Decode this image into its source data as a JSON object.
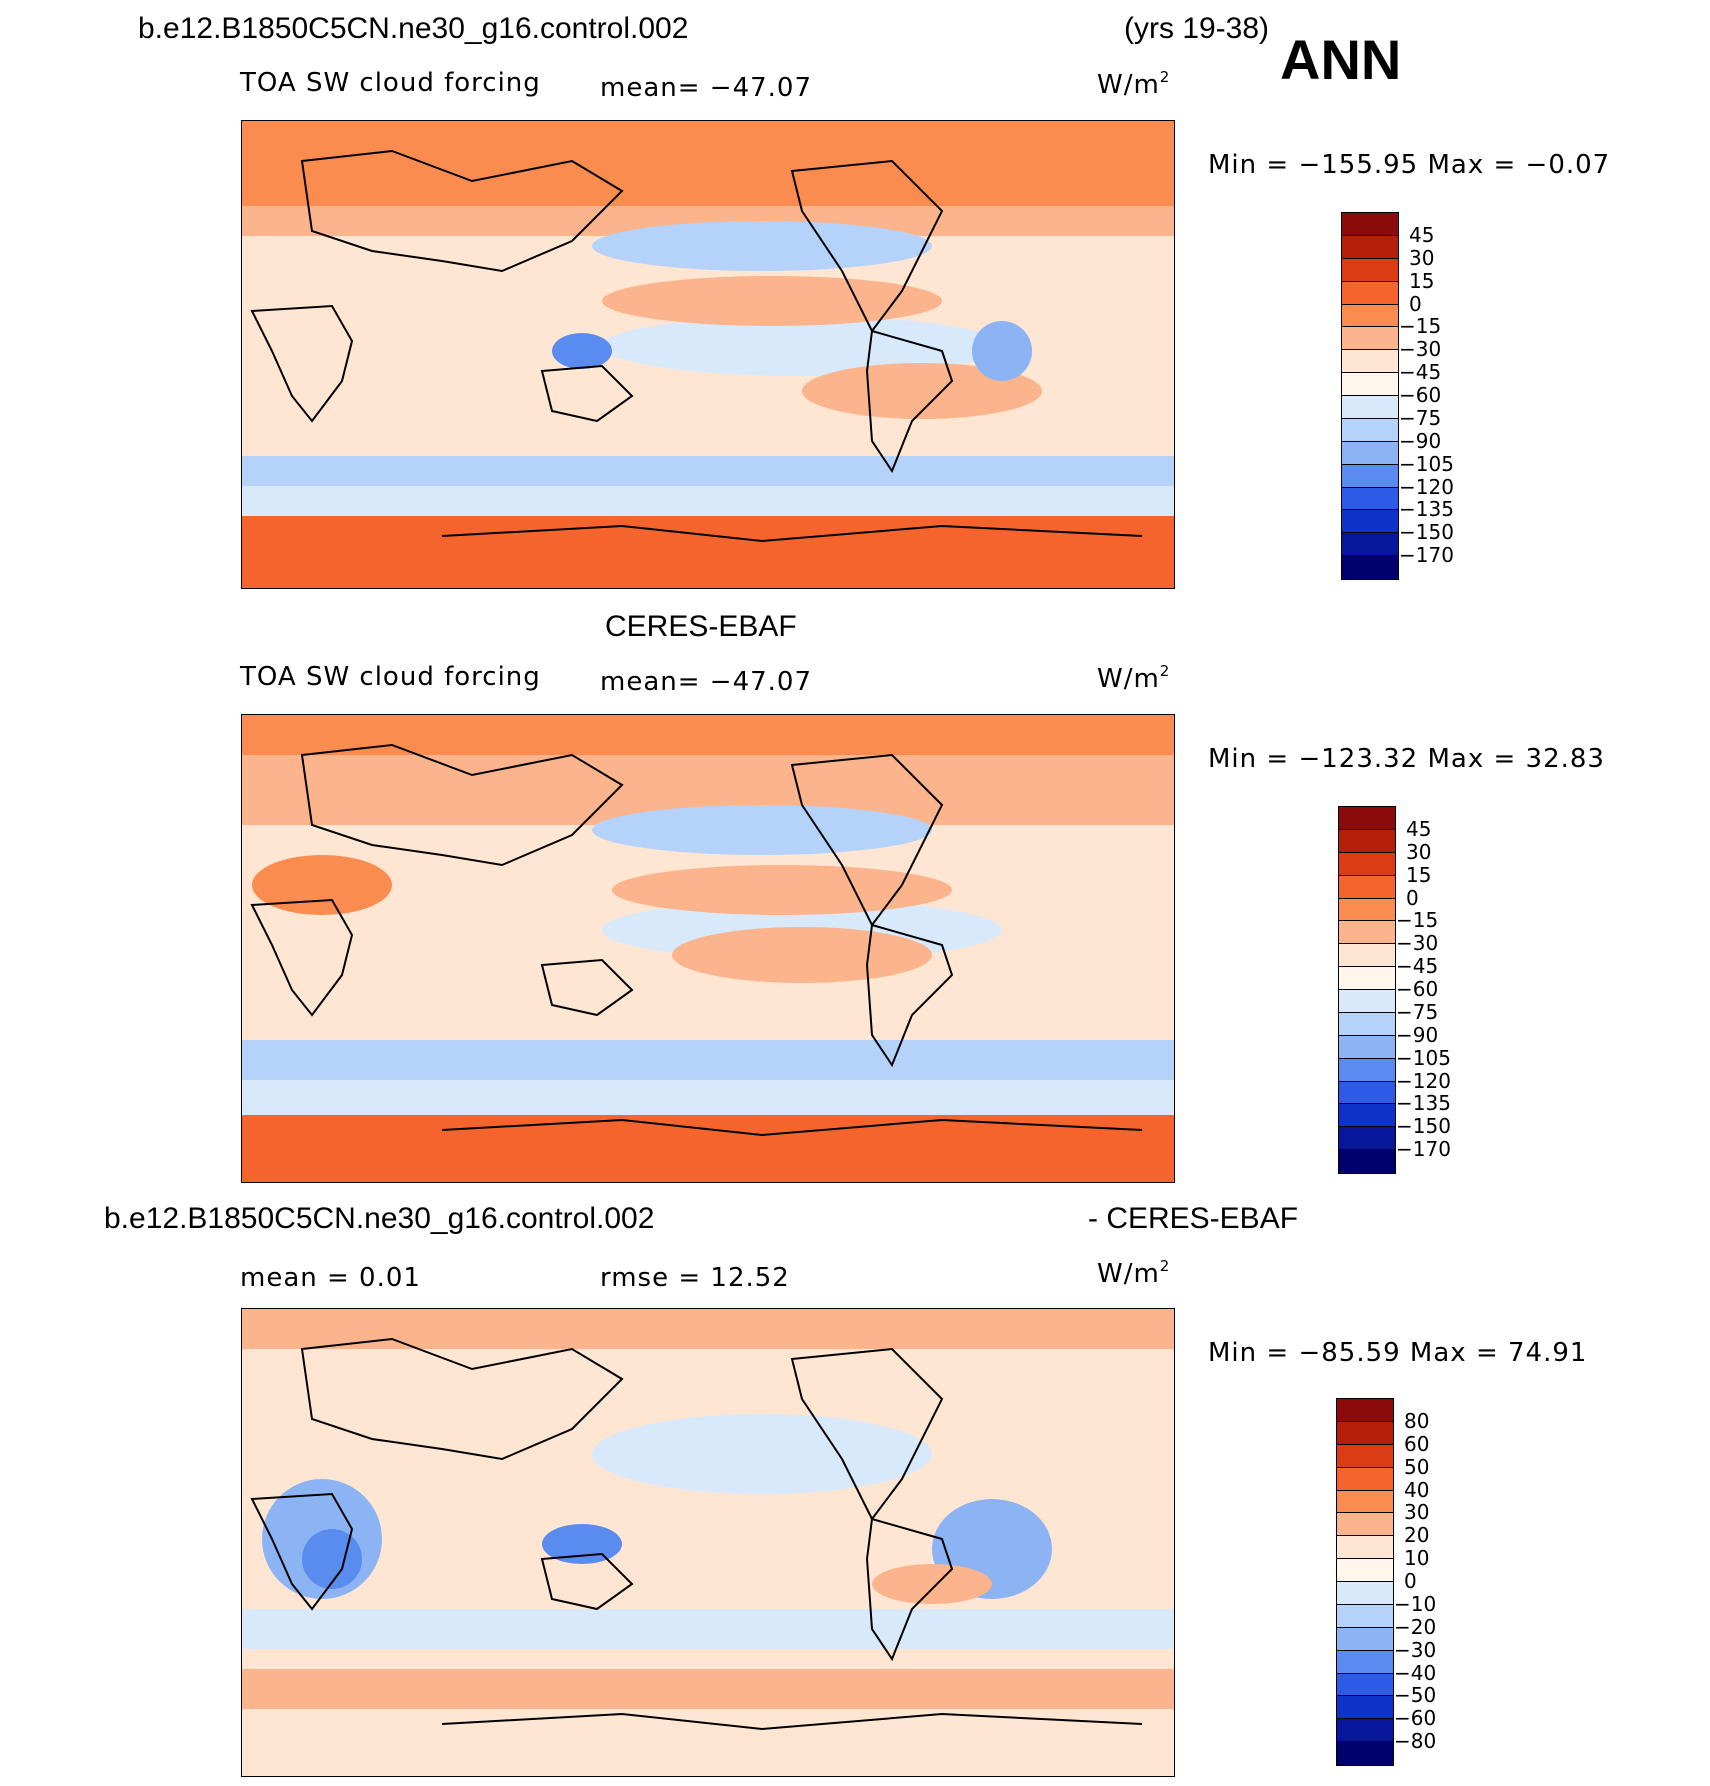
{
  "header": {
    "case": "b.e12.B1850C5CN.ne30_g16.control.002",
    "years": "(yrs 19-38)",
    "season": "ANN"
  },
  "panels": [
    {
      "title": "",
      "variable": "TOA SW cloud forcing",
      "stat": "mean=  −47.07",
      "unit": "W/m",
      "unit_exp": "2",
      "minmax": "Min  =  −155.95  Max  =    −0.07",
      "colorbar": {
        "labels": [
          "45",
          "30",
          "15",
          "0",
          "−15",
          "−30",
          "−45",
          "−60",
          "−75",
          "−90",
          "−105",
          "−120",
          "−135",
          "−150",
          "−170"
        ],
        "colors": [
          "#8b0a0a",
          "#b41f0a",
          "#dc3c14",
          "#f5642d",
          "#fa8c50",
          "#fcb48c",
          "#fee6d2",
          "#fff6ec",
          "#d8e9fc",
          "#b4d2fa",
          "#8cb4f5",
          "#5a8cf0",
          "#2d5ae6",
          "#0f32c8",
          "#08169e",
          "#00006e"
        ]
      }
    },
    {
      "title": "CERES-EBAF",
      "variable": "TOA SW cloud forcing",
      "stat": "mean=  −47.07",
      "unit": "W/m",
      "unit_exp": "2",
      "minmax": "Min  =  −123.32  Max  =    32.83",
      "colorbar": {
        "labels": [
          "45",
          "30",
          "15",
          "0",
          "−15",
          "−30",
          "−45",
          "−60",
          "−75",
          "−90",
          "−105",
          "−120",
          "−135",
          "−150",
          "−170"
        ],
        "colors": [
          "#8b0a0a",
          "#b41f0a",
          "#dc3c14",
          "#f5642d",
          "#fa8c50",
          "#fcb48c",
          "#fee6d2",
          "#fff6ec",
          "#d8e9fc",
          "#b4d2fa",
          "#8cb4f5",
          "#5a8cf0",
          "#2d5ae6",
          "#0f32c8",
          "#08169e",
          "#00006e"
        ]
      }
    },
    {
      "title_left": "b.e12.B1850C5CN.ne30_g16.control.002",
      "title_right": "- CERES-EBAF",
      "stat_left": "mean  =     0.01",
      "stat_right": "rmse  =    12.52",
      "unit": "W/m",
      "unit_exp": "2",
      "minmax": "Min  =  −85.59  Max  =    74.91",
      "colorbar": {
        "labels": [
          "80",
          "60",
          "50",
          "40",
          "30",
          "20",
          "10",
          "0",
          "−10",
          "−20",
          "−30",
          "−40",
          "−50",
          "−60",
          "−80"
        ],
        "colors": [
          "#8b0a0a",
          "#b41f0a",
          "#dc3c14",
          "#f5642d",
          "#fa8c50",
          "#fcb48c",
          "#fee6d2",
          "#fff6ec",
          "#d8e9fc",
          "#b4d2fa",
          "#8cb4f5",
          "#5a8cf0",
          "#2d5ae6",
          "#0f32c8",
          "#08169e",
          "#00006e"
        ]
      }
    }
  ]
}
